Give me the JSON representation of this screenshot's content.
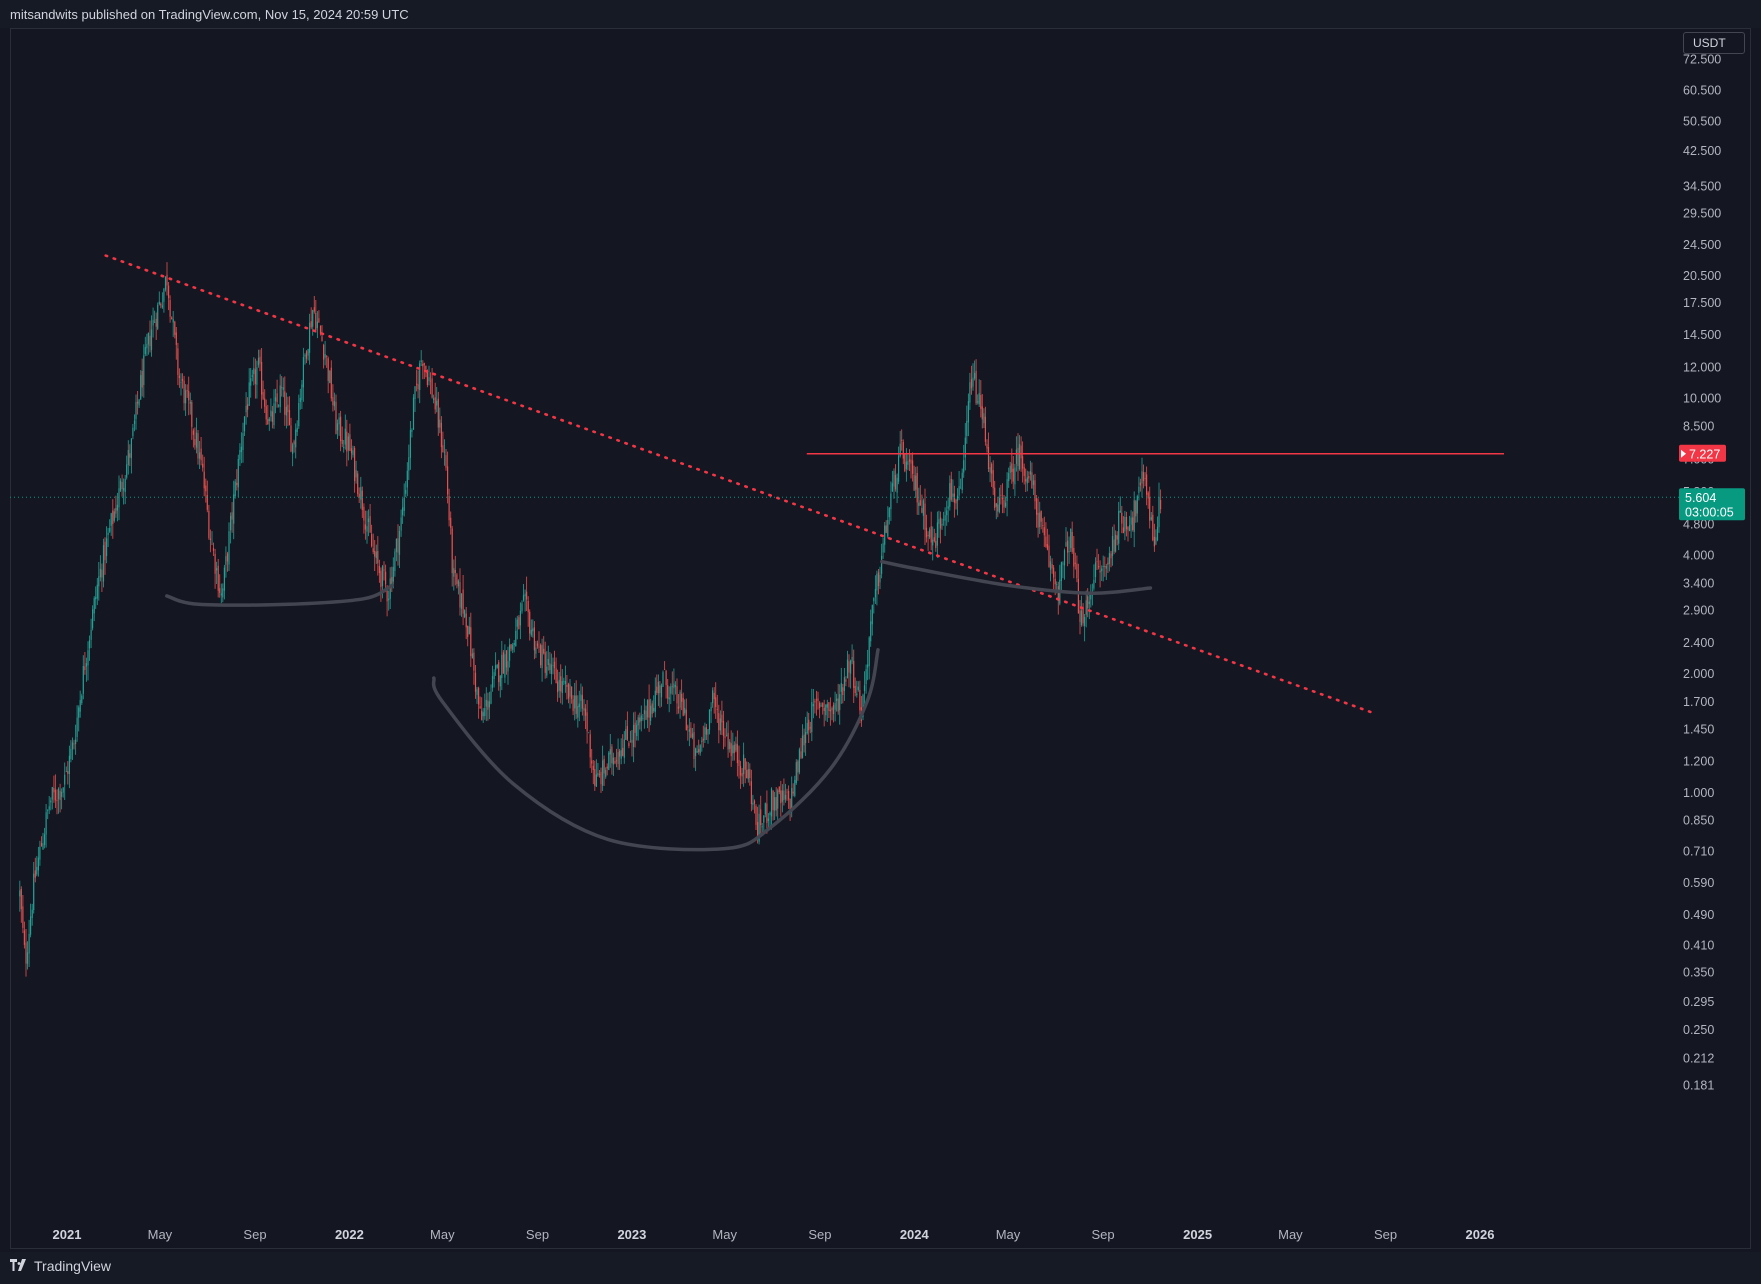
{
  "header": {
    "published": "mitsandwits published on TradingView.com, Nov 15, 2024 20:59 UTC"
  },
  "footer": {
    "brand": "TradingView",
    "brand_icon": "tradingview-logo-icon"
  },
  "price_axis": {
    "currency": "USDT",
    "ticks": [
      "72.500",
      "60.500",
      "50.500",
      "42.500",
      "34.500",
      "29.500",
      "24.500",
      "20.500",
      "17.500",
      "14.500",
      "12.000",
      "10.000",
      "8.500",
      "7.000",
      "5.800",
      "4.800",
      "4.000",
      "3.400",
      "2.900",
      "2.400",
      "2.000",
      "1.700",
      "1.450",
      "1.200",
      "1.000",
      "0.850",
      "0.710",
      "0.590",
      "0.490",
      "0.410",
      "0.350",
      "0.295",
      "0.250",
      "0.212",
      "0.181"
    ],
    "resistance_label": "7.227",
    "last_price_label": "5.604",
    "countdown_label": "03:00:05"
  },
  "time_axis": {
    "labels": [
      {
        "text": "2021",
        "bold": true
      },
      {
        "text": "May",
        "bold": false
      },
      {
        "text": "Sep",
        "bold": false
      },
      {
        "text": "2022",
        "bold": true
      },
      {
        "text": "May",
        "bold": false
      },
      {
        "text": "Sep",
        "bold": false
      },
      {
        "text": "2023",
        "bold": true
      },
      {
        "text": "May",
        "bold": false
      },
      {
        "text": "Sep",
        "bold": false
      },
      {
        "text": "2024",
        "bold": true
      },
      {
        "text": "May",
        "bold": false
      },
      {
        "text": "Sep",
        "bold": false
      },
      {
        "text": "2025",
        "bold": true
      },
      {
        "text": "May",
        "bold": false
      },
      {
        "text": "Sep",
        "bold": false
      },
      {
        "text": "2026",
        "bold": true
      }
    ]
  },
  "colors": {
    "background": "#141722",
    "up": "#26a69a",
    "down": "#ef5350",
    "resistance": "#f23645",
    "trendline": "#f23645",
    "arc": "#434651",
    "last_price": "#089981"
  },
  "chart_data": {
    "type": "candlestick",
    "scale": "log",
    "currency": "USDT",
    "ylim": [
      0.181,
      72.5
    ],
    "xlim": [
      "2020-11-01",
      "2026-02-01"
    ],
    "last_price": 5.604,
    "resistance_level": 7.227,
    "price_path": [
      {
        "date": "2020-11-01",
        "close": 0.55
      },
      {
        "date": "2020-11-08",
        "close": 0.37
      },
      {
        "date": "2020-11-20",
        "close": 0.6
      },
      {
        "date": "2020-12-10",
        "close": 0.95
      },
      {
        "date": "2020-12-28",
        "close": 1.05
      },
      {
        "date": "2021-01-10",
        "close": 1.35
      },
      {
        "date": "2021-01-25",
        "close": 2.2
      },
      {
        "date": "2021-02-10",
        "close": 3.4
      },
      {
        "date": "2021-02-25",
        "close": 4.6
      },
      {
        "date": "2021-03-10",
        "close": 5.8
      },
      {
        "date": "2021-03-25",
        "close": 7.5
      },
      {
        "date": "2021-04-05",
        "close": 10.5
      },
      {
        "date": "2021-04-20",
        "close": 15.0
      },
      {
        "date": "2021-05-05",
        "close": 18.5
      },
      {
        "date": "2021-05-10",
        "close": 20.5
      },
      {
        "date": "2021-05-25",
        "close": 11.5
      },
      {
        "date": "2021-06-10",
        "close": 9.0
      },
      {
        "date": "2021-06-25",
        "close": 6.5
      },
      {
        "date": "2021-07-05",
        "close": 4.5
      },
      {
        "date": "2021-07-20",
        "close": 3.1
      },
      {
        "date": "2021-08-05",
        "close": 5.6
      },
      {
        "date": "2021-08-20",
        "close": 9.5
      },
      {
        "date": "2021-09-05",
        "close": 12.0
      },
      {
        "date": "2021-09-20",
        "close": 8.5
      },
      {
        "date": "2021-10-05",
        "close": 10.5
      },
      {
        "date": "2021-10-20",
        "close": 7.5
      },
      {
        "date": "2021-11-05",
        "close": 13.0
      },
      {
        "date": "2021-11-15",
        "close": 17.0
      },
      {
        "date": "2021-12-01",
        "close": 13.0
      },
      {
        "date": "2021-12-15",
        "close": 8.5
      },
      {
        "date": "2022-01-01",
        "close": 7.5
      },
      {
        "date": "2022-01-15",
        "close": 5.8
      },
      {
        "date": "2022-02-01",
        "close": 4.0
      },
      {
        "date": "2022-02-20",
        "close": 3.2
      },
      {
        "date": "2022-03-10",
        "close": 5.0
      },
      {
        "date": "2022-03-25",
        "close": 9.5
      },
      {
        "date": "2022-04-05",
        "close": 13.0
      },
      {
        "date": "2022-04-20",
        "close": 10.0
      },
      {
        "date": "2022-05-05",
        "close": 7.0
      },
      {
        "date": "2022-05-15",
        "close": 3.5
      },
      {
        "date": "2022-06-01",
        "close": 2.8
      },
      {
        "date": "2022-06-20",
        "close": 1.5
      },
      {
        "date": "2022-07-10",
        "close": 2.0
      },
      {
        "date": "2022-08-01",
        "close": 2.4
      },
      {
        "date": "2022-08-15",
        "close": 3.0
      },
      {
        "date": "2022-09-01",
        "close": 2.3
      },
      {
        "date": "2022-10-01",
        "close": 1.85
      },
      {
        "date": "2022-11-01",
        "close": 1.6
      },
      {
        "date": "2022-11-15",
        "close": 1.05
      },
      {
        "date": "2022-12-15",
        "close": 1.3
      },
      {
        "date": "2023-01-15",
        "close": 1.5
      },
      {
        "date": "2023-02-10",
        "close": 1.95
      },
      {
        "date": "2023-03-10",
        "close": 1.6
      },
      {
        "date": "2023-03-25",
        "close": 1.2
      },
      {
        "date": "2023-04-15",
        "close": 1.7
      },
      {
        "date": "2023-05-10",
        "close": 1.3
      },
      {
        "date": "2023-06-01",
        "close": 1.1
      },
      {
        "date": "2023-06-12",
        "close": 0.8
      },
      {
        "date": "2023-07-01",
        "close": 0.95
      },
      {
        "date": "2023-07-25",
        "close": 0.95
      },
      {
        "date": "2023-08-15",
        "close": 1.5
      },
      {
        "date": "2023-09-01",
        "close": 1.7
      },
      {
        "date": "2023-09-20",
        "close": 1.6
      },
      {
        "date": "2023-10-10",
        "close": 2.2
      },
      {
        "date": "2023-10-25",
        "close": 1.6
      },
      {
        "date": "2023-11-05",
        "close": 2.6
      },
      {
        "date": "2023-11-20",
        "close": 4.0
      },
      {
        "date": "2023-12-01",
        "close": 5.5
      },
      {
        "date": "2023-12-15",
        "close": 7.3
      },
      {
        "date": "2024-01-05",
        "close": 5.8
      },
      {
        "date": "2024-01-25",
        "close": 4.2
      },
      {
        "date": "2024-02-15",
        "close": 5.8
      },
      {
        "date": "2024-03-01",
        "close": 5.5
      },
      {
        "date": "2024-03-10",
        "close": 9.0
      },
      {
        "date": "2024-03-15",
        "close": 11.5
      },
      {
        "date": "2024-04-01",
        "close": 8.5
      },
      {
        "date": "2024-04-15",
        "close": 5.0
      },
      {
        "date": "2024-05-01",
        "close": 6.0
      },
      {
        "date": "2024-05-15",
        "close": 7.3
      },
      {
        "date": "2024-06-01",
        "close": 6.0
      },
      {
        "date": "2024-06-20",
        "close": 4.0
      },
      {
        "date": "2024-07-05",
        "close": 3.3
      },
      {
        "date": "2024-07-20",
        "close": 4.5
      },
      {
        "date": "2024-08-05",
        "close": 2.6
      },
      {
        "date": "2024-08-20",
        "close": 3.6
      },
      {
        "date": "2024-09-05",
        "close": 3.7
      },
      {
        "date": "2024-09-20",
        "close": 4.8
      },
      {
        "date": "2024-10-10",
        "close": 5.0
      },
      {
        "date": "2024-10-25",
        "close": 6.5
      },
      {
        "date": "2024-11-05",
        "close": 4.3
      },
      {
        "date": "2024-11-15",
        "close": 5.604
      }
    ],
    "trendline": {
      "style": "dotted",
      "points": [
        {
          "date": "2021-02-20",
          "price": 23.0
        },
        {
          "date": "2025-08-20",
          "price": 1.58
        }
      ]
    },
    "resistance_line": {
      "from": "2023-08-15",
      "to": "2026-02-01",
      "price": 7.227
    },
    "arcs": [
      {
        "style": "solid",
        "points": [
          {
            "date": "2021-05-10",
            "price": 3.15
          },
          {
            "date": "2021-06-20",
            "price": 3.0
          },
          {
            "date": "2021-10-15",
            "price": 3.0
          },
          {
            "date": "2022-01-20",
            "price": 3.1
          },
          {
            "date": "2022-02-25",
            "price": 3.35
          }
        ]
      },
      {
        "style": "solid",
        "points": [
          {
            "date": "2022-04-20",
            "price": 1.95
          },
          {
            "date": "2022-05-01",
            "price": 1.7
          },
          {
            "date": "2022-08-01",
            "price": 1.05
          },
          {
            "date": "2022-12-01",
            "price": 0.76
          },
          {
            "date": "2023-05-01",
            "price": 0.72
          },
          {
            "date": "2023-07-01",
            "price": 0.82
          },
          {
            "date": "2023-09-15",
            "price": 1.15
          },
          {
            "date": "2023-11-01",
            "price": 1.7
          },
          {
            "date": "2023-11-15",
            "price": 2.3
          }
        ]
      },
      {
        "style": "solid",
        "points": [
          {
            "date": "2023-11-20",
            "price": 3.85
          },
          {
            "date": "2024-01-01",
            "price": 3.7
          },
          {
            "date": "2024-05-01",
            "price": 3.35
          },
          {
            "date": "2024-08-15",
            "price": 3.2
          },
          {
            "date": "2024-11-01",
            "price": 3.3
          }
        ]
      }
    ]
  }
}
